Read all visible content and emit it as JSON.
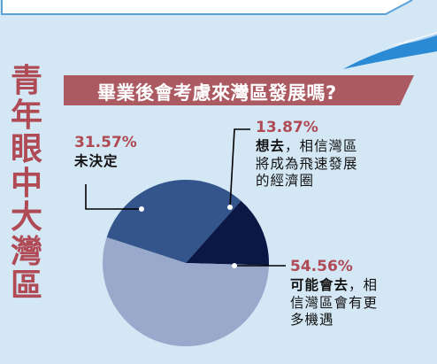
{
  "vertical_title": [
    "青",
    "年",
    "眼",
    "中",
    "大",
    "灣",
    "區"
  ],
  "colors": {
    "background": "#d4e7f4",
    "accent": "#b04a55",
    "banner": "#ac5a62",
    "slice_go": "#98a9cc",
    "slice_undecided": "#34558c",
    "slice_consider": "#0b1845"
  },
  "chart_data": {
    "type": "pie",
    "title": "畢業後會考慮來灣區發展嗎?",
    "start_angle_deg": 198,
    "direction": "clockwise",
    "slices": [
      {
        "key": "undecided",
        "value": 31.57,
        "label": "31.57%",
        "desc_bold": "未決定",
        "desc_rest": []
      },
      {
        "key": "consider",
        "value": 13.87,
        "label": "13.87%",
        "desc_bold": "想去",
        "desc_rest": [
          "，相信灣區",
          "將成為飛速發展",
          "的經濟圈"
        ]
      },
      {
        "key": "go",
        "value": 54.56,
        "label": "54.56%",
        "desc_bold": "可能會去",
        "desc_rest": [
          "，相",
          "信灣區會有更",
          "多機遇"
        ]
      }
    ]
  }
}
